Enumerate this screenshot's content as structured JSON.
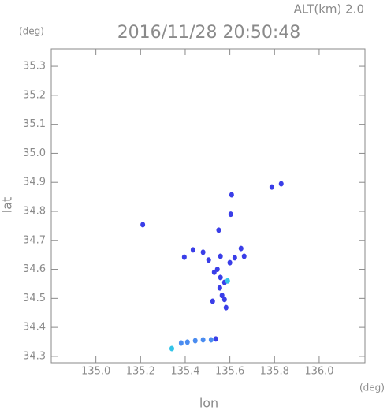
{
  "chart_data": {
    "type": "scatter",
    "title": "2016/11/28 20:50:48",
    "subtitle": "ALT(km) 2.0",
    "x_label": "lon",
    "y_label": "lat",
    "x_unit": "(deg)",
    "y_unit": "(deg)",
    "xlim": [
      134.8,
      136.205
    ],
    "ylim": [
      34.278,
      35.36
    ],
    "xticks": [
      {
        "value": 135.0,
        "label": "135.0"
      },
      135.2,
      135.4,
      135.6,
      135.8,
      {
        "value": 136.0,
        "label": "136.0"
      }
    ],
    "yticks": [
      34.3,
      34.4,
      34.5,
      34.6,
      34.7,
      34.8,
      34.9,
      {
        "value": 35.0,
        "label": "35.0"
      },
      35.1,
      35.2,
      35.3
    ],
    "series": [
      {
        "color": "#3a3ee8",
        "x": [
          135.21,
          135.788,
          135.83,
          135.608,
          135.604,
          135.55,
          135.396,
          135.435,
          135.48,
          135.505,
          135.558,
          135.6,
          135.622,
          135.65,
          135.664,
          135.53,
          135.558,
          135.576,
          135.555,
          135.565,
          135.523,
          135.576,
          135.583,
          135.544,
          135.537
        ],
        "y": [
          34.754,
          34.884,
          34.895,
          34.857,
          34.79,
          34.735,
          34.642,
          34.667,
          34.659,
          34.632,
          34.645,
          34.623,
          34.64,
          34.672,
          34.645,
          34.59,
          34.572,
          34.555,
          34.536,
          34.51,
          34.49,
          34.496,
          34.468,
          34.6,
          34.36
        ]
      },
      {
        "color": "#4a8cf0",
        "x": [
          135.382,
          135.41,
          135.445,
          135.48,
          135.516
        ],
        "y": [
          34.346,
          34.349,
          34.354,
          34.357,
          34.357
        ]
      },
      {
        "color": "#33c4e8",
        "x": [
          135.59,
          135.34
        ],
        "y": [
          34.56,
          34.327
        ]
      }
    ]
  }
}
